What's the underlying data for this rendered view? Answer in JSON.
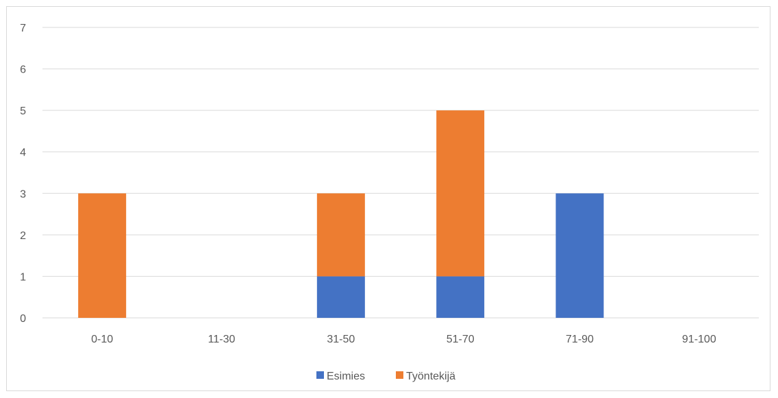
{
  "chart_data": {
    "type": "bar",
    "stacked": true,
    "categories": [
      "0-10",
      "11-30",
      "31-50",
      "51-70",
      "71-90",
      "91-100"
    ],
    "series": [
      {
        "name": "Esimies",
        "values": [
          0,
          0,
          1,
          1,
          3,
          0
        ],
        "color": "#4472c4"
      },
      {
        "name": "Työntekijä",
        "values": [
          3,
          0,
          2,
          4,
          0,
          0
        ],
        "color": "#ed7d31"
      }
    ],
    "ylim": [
      0,
      7
    ],
    "yticks": [
      "0",
      "1",
      "2",
      "3",
      "4",
      "5",
      "6",
      "7"
    ],
    "grid": true,
    "legend_position": "bottom"
  }
}
